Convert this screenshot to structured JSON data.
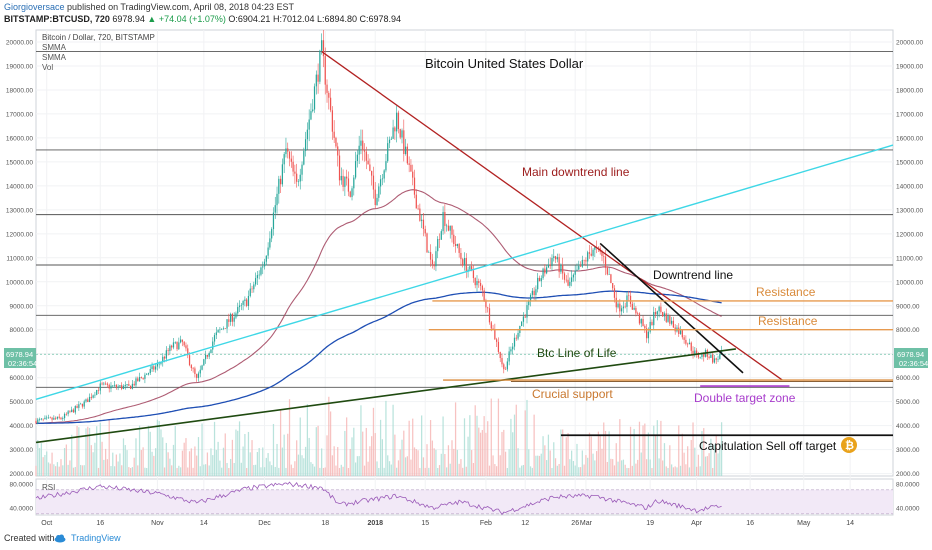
{
  "header": {
    "author": "Giorgioversace",
    "published_text": "published on TradingView.com, April 08, 2018 04:23 EST",
    "symbol_line": "BITSTAMP:BTCUSD, 720",
    "last": "6978.94",
    "change": "▲ +74.04 (+1.07%)",
    "ohlc": "O:6904.21 H:7012.04 L:6894.80 C:6978.94"
  },
  "legend": {
    "title": "Bitcoin / Dollar, 720, BITSTAMP",
    "items": [
      "SMMA",
      "SMMA",
      "Vol"
    ]
  },
  "footer": {
    "created_with": "Created with",
    "brand": "TradingView"
  },
  "colors": {
    "up": "#26a69a",
    "down": "#ef5350",
    "smma_fast": "#a0405a",
    "smma_slow": "#1f4fb4",
    "downtrend_main": "#b22222",
    "uptrend_cyan": "#3ed7e6",
    "line_of_life": "#1f4a10",
    "resistance": "#e79a4f",
    "target_zone": "#a83ccc",
    "rsi": "#9a5ab8"
  },
  "chart_data": {
    "type": "candlestick",
    "title": "Bitcoin United States Dollar",
    "ylim": [
      1900,
      20500
    ],
    "y_ticks": [
      "20000.00",
      "19000.00",
      "18000.00",
      "17000.00",
      "16000.00",
      "15000.00",
      "14000.00",
      "13000.00",
      "12000.00",
      "11000.00",
      "10000.00",
      "9000.00",
      "8000.00",
      "7000.00",
      "6000.00",
      "5000.00",
      "4000.00",
      "3000.00",
      "2000.00"
    ],
    "x_range": [
      "2017-09-28",
      "2018-05-26"
    ],
    "x_ticks": [
      {
        "date": "2017-10-01",
        "label": "Oct"
      },
      {
        "date": "2017-10-16",
        "label": "16"
      },
      {
        "date": "2017-11-01",
        "label": "Nov"
      },
      {
        "date": "2017-11-14",
        "label": "14"
      },
      {
        "date": "2017-12-01",
        "label": "Dec"
      },
      {
        "date": "2017-12-18",
        "label": "18"
      },
      {
        "date": "2018-01-01",
        "label": "2018"
      },
      {
        "date": "2018-01-15",
        "label": "15"
      },
      {
        "date": "2018-02-01",
        "label": "Feb"
      },
      {
        "date": "2018-02-12",
        "label": "12"
      },
      {
        "date": "2018-02-26",
        "label": "26"
      },
      {
        "date": "2018-03-01",
        "label": "Mar"
      },
      {
        "date": "2018-03-19",
        "label": "19"
      },
      {
        "date": "2018-04-01",
        "label": "Apr"
      },
      {
        "date": "2018-04-16",
        "label": "16"
      },
      {
        "date": "2018-05-01",
        "label": "May"
      },
      {
        "date": "2018-05-14",
        "label": "14"
      }
    ],
    "price_anchors": [
      [
        "2017-09-28",
        4200
      ],
      [
        "2017-10-05",
        4300
      ],
      [
        "2017-10-12",
        5000
      ],
      [
        "2017-10-16",
        5650
      ],
      [
        "2017-10-24",
        5600
      ],
      [
        "2017-11-01",
        6500
      ],
      [
        "2017-11-05",
        7300
      ],
      [
        "2017-11-08",
        7450
      ],
      [
        "2017-11-12",
        5900
      ],
      [
        "2017-11-17",
        7700
      ],
      [
        "2017-11-26",
        9200
      ],
      [
        "2017-12-01",
        10900
      ],
      [
        "2017-12-07",
        15500
      ],
      [
        "2017-12-10",
        14000
      ],
      [
        "2017-12-17",
        19600
      ],
      [
        "2017-12-22",
        14500
      ],
      [
        "2017-12-25",
        13800
      ],
      [
        "2017-12-28",
        16000
      ],
      [
        "2018-01-01",
        13500
      ],
      [
        "2018-01-07",
        16900
      ],
      [
        "2018-01-12",
        13700
      ],
      [
        "2018-01-17",
        10500
      ],
      [
        "2018-01-20",
        12800
      ],
      [
        "2018-01-25",
        11000
      ],
      [
        "2018-01-31",
        9600
      ],
      [
        "2018-02-05",
        6900
      ],
      [
        "2018-02-06",
        6300
      ],
      [
        "2018-02-10",
        8000
      ],
      [
        "2018-02-16",
        10100
      ],
      [
        "2018-02-20",
        11100
      ],
      [
        "2018-02-24",
        9800
      ],
      [
        "2018-03-03",
        11400
      ],
      [
        "2018-03-06",
        11000
      ],
      [
        "2018-03-10",
        8900
      ],
      [
        "2018-03-13",
        9300
      ],
      [
        "2018-03-18",
        7800
      ],
      [
        "2018-03-21",
        8900
      ],
      [
        "2018-03-23",
        8600
      ],
      [
        "2018-03-28",
        7800
      ],
      [
        "2018-04-01",
        6900
      ],
      [
        "2018-04-04",
        7000
      ],
      [
        "2018-04-06",
        6700
      ],
      [
        "2018-04-08",
        6978.94
      ]
    ],
    "last_price": {
      "value": 6978.94,
      "label": "6978.94",
      "countdown": "02:36:54"
    },
    "horizontal_levels": [
      19600,
      15500,
      12800,
      10700,
      8600,
      5600
    ],
    "drawings": [
      {
        "name": "main-downtrend-line",
        "label": "Main downtrend line",
        "from": [
          "2017-12-17",
          19600
        ],
        "to": [
          "2018-04-25",
          5900
        ]
      },
      {
        "name": "cyan-uptrend-line",
        "from": [
          "2017-09-28",
          5100
        ],
        "to": [
          "2018-05-26",
          15700
        ]
      },
      {
        "name": "btc-line-of-life",
        "label": "Btc Line of Life",
        "from": [
          "2017-09-28",
          3300
        ],
        "to": [
          "2018-04-12",
          7200
        ]
      },
      {
        "name": "downtrend-line",
        "label": "Downtrend line",
        "from": [
          "2018-03-05",
          11600
        ],
        "to": [
          "2018-04-14",
          6200
        ]
      },
      {
        "name": "resistance-upper",
        "label": "Resistance",
        "from": [
          "2018-01-17",
          9200
        ],
        "to": [
          "2018-05-26",
          9200
        ]
      },
      {
        "name": "resistance-lower",
        "label": "Resistance",
        "from": [
          "2018-01-16",
          8000
        ],
        "to": [
          "2018-05-26",
          8000
        ]
      },
      {
        "name": "crucial-support",
        "label": "Crucial support",
        "from": [
          "2018-01-20",
          5900
        ],
        "to": [
          "2018-05-26",
          5900
        ]
      },
      {
        "name": "double-target-zone",
        "label": "Double target zone",
        "from": [
          "2018-04-02",
          5650
        ],
        "to": [
          "2018-04-27",
          5650
        ]
      },
      {
        "name": "capitulation-target",
        "label": "Capitulation Sell off target",
        "from": [
          "2018-02-22",
          3600
        ],
        "to": [
          "2018-05-26",
          3600
        ]
      }
    ],
    "rsi": {
      "label": "RSI",
      "ylim": [
        28,
        88
      ],
      "ticks": [
        "80.0000",
        "40.0000"
      ],
      "band": [
        70,
        30
      ],
      "anchors": [
        [
          "2017-09-28",
          55
        ],
        [
          "2017-10-16",
          76
        ],
        [
          "2017-11-01",
          64
        ],
        [
          "2017-11-12",
          48
        ],
        [
          "2017-11-26",
          72
        ],
        [
          "2017-12-07",
          80
        ],
        [
          "2017-12-17",
          74
        ],
        [
          "2017-12-22",
          45
        ],
        [
          "2018-01-07",
          60
        ],
        [
          "2018-01-17",
          40
        ],
        [
          "2018-01-25",
          50
        ],
        [
          "2018-02-06",
          32
        ],
        [
          "2018-02-20",
          58
        ],
        [
          "2018-03-03",
          60
        ],
        [
          "2018-03-18",
          40
        ],
        [
          "2018-03-21",
          52
        ],
        [
          "2018-04-01",
          36
        ],
        [
          "2018-04-08",
          43
        ]
      ]
    }
  }
}
